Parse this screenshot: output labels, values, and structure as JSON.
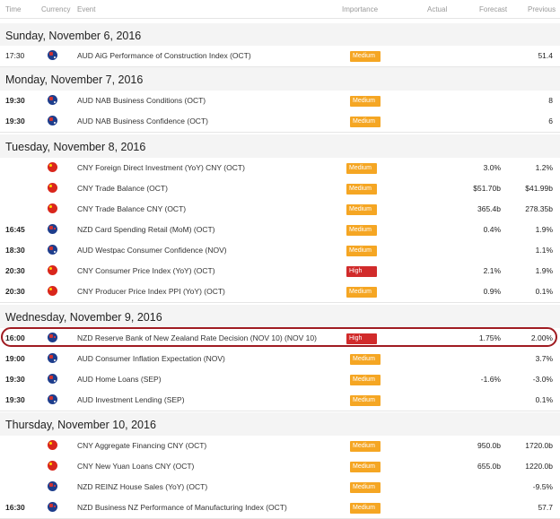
{
  "header": {
    "time": "Time",
    "currency": "Currency",
    "event": "Event",
    "importance": "Importance",
    "actual": "Actual",
    "forecast": "Forecast",
    "previous": "Previous"
  },
  "days": [
    {
      "label": "Sunday, November 6, 2016"
    },
    {
      "label": "Monday, November 7, 2016"
    },
    {
      "label": "Tuesday, November 8, 2016"
    },
    {
      "label": "Wednesday, November 9, 2016"
    },
    {
      "label": "Thursday, November 10, 2016"
    }
  ],
  "rows": [
    {
      "time": "17:30",
      "flag": "au",
      "event": "AUD AiG Performance of Construction Index (OCT)",
      "importance": "Medium",
      "forecast": "",
      "previous": "51.4"
    },
    {
      "time": "19:30",
      "flag": "au",
      "event": "AUD NAB Business Conditions (OCT)",
      "importance": "Medium",
      "forecast": "",
      "previous": "8"
    },
    {
      "time": "19:30",
      "flag": "au",
      "event": "AUD NAB Business Confidence (OCT)",
      "importance": "Medium",
      "forecast": "",
      "previous": "6"
    },
    {
      "time": "",
      "flag": "cn",
      "event": "CNY Foreign Direct Investment (YoY) CNY (OCT)",
      "importance": "Medium",
      "forecast": "3.0%",
      "previous": "1.2%"
    },
    {
      "time": "",
      "flag": "cn",
      "event": "CNY Trade Balance (OCT)",
      "importance": "Medium",
      "forecast": "$51.70b",
      "previous": "$41.99b"
    },
    {
      "time": "",
      "flag": "cn",
      "event": "CNY Trade Balance CNY (OCT)",
      "importance": "Medium",
      "forecast": "365.4b",
      "previous": "278.35b"
    },
    {
      "time": "16:45",
      "flag": "nz",
      "event": "NZD Card Spending Retail (MoM) (OCT)",
      "importance": "Medium",
      "forecast": "0.4%",
      "previous": "1.9%"
    },
    {
      "time": "18:30",
      "flag": "au",
      "event": "AUD Westpac Consumer Confidence (NOV)",
      "importance": "Medium",
      "forecast": "",
      "previous": "1.1%"
    },
    {
      "time": "20:30",
      "flag": "cn",
      "event": "CNY Consumer Price Index (YoY) (OCT)",
      "importance": "High",
      "forecast": "2.1%",
      "previous": "1.9%"
    },
    {
      "time": "20:30",
      "flag": "cn",
      "event": "CNY Producer Price Index PPI (YoY) (OCT)",
      "importance": "Medium",
      "forecast": "0.9%",
      "previous": "0.1%"
    },
    {
      "time": "16:00",
      "flag": "nz",
      "event": "NZD Reserve Bank of New Zealand Rate Decision (NOV 10) (NOV 10)",
      "importance": "High",
      "forecast": "1.75%",
      "previous": "2.00%"
    },
    {
      "time": "19:00",
      "flag": "au",
      "event": "AUD Consumer Inflation Expectation (NOV)",
      "importance": "Medium",
      "forecast": "",
      "previous": "3.7%"
    },
    {
      "time": "19:30",
      "flag": "au",
      "event": "AUD Home Loans (SEP)",
      "importance": "Medium",
      "forecast": "-1.6%",
      "previous": "-3.0%"
    },
    {
      "time": "19:30",
      "flag": "au",
      "event": "AUD Investment Lending (SEP)",
      "importance": "Medium",
      "forecast": "",
      "previous": "0.1%"
    },
    {
      "time": "",
      "flag": "cn",
      "event": "CNY Aggregate Financing CNY (OCT)",
      "importance": "Medium",
      "forecast": "950.0b",
      "previous": "1720.0b"
    },
    {
      "time": "",
      "flag": "cn",
      "event": "CNY New Yuan Loans CNY (OCT)",
      "importance": "Medium",
      "forecast": "655.0b",
      "previous": "1220.0b"
    },
    {
      "time": "",
      "flag": "nz",
      "event": "NZD REINZ House Sales (YoY) (OCT)",
      "importance": "Medium",
      "forecast": "",
      "previous": "-9.5%"
    },
    {
      "time": "16:30",
      "flag": "nz",
      "event": "NZD Business NZ Performance of Manufacturing Index (OCT)",
      "importance": "Medium",
      "forecast": "",
      "previous": "57.7"
    }
  ]
}
